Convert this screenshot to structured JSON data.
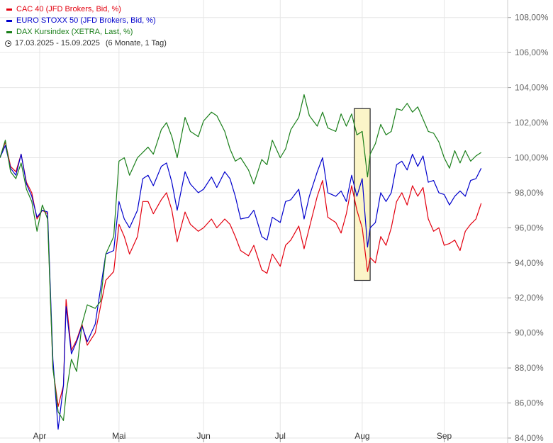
{
  "legend": {
    "series": [
      {
        "label": "CAC 40 (JFD Brokers, Bid, %)",
        "color": "#e3000f"
      },
      {
        "label": "EURO STOXX 50 (JFD Brokers, Bid, %)",
        "color": "#0000cc"
      },
      {
        "label": "DAX Kursindex (XETRA, Last, %)",
        "color": "#1a7f1a"
      }
    ],
    "date_range": "17.03.2025 - 15.09.2025",
    "period": "(6 Monate, 1 Tag)"
  },
  "chart_data": {
    "type": "line",
    "ylim": [
      84,
      109
    ],
    "y_ticks": [
      "84,00%",
      "86,00%",
      "88,00%",
      "90,00%",
      "92,00%",
      "94,00%",
      "96,00%",
      "98,00%",
      "100,00%",
      "102,00%",
      "104,00%",
      "106,00%",
      "108,00%"
    ],
    "y_tick_values": [
      84,
      86,
      88,
      90,
      92,
      94,
      96,
      98,
      100,
      102,
      104,
      106,
      108
    ],
    "x_ticks": [
      {
        "label": "Apr",
        "date": "2025-04-01"
      },
      {
        "label": "Mai",
        "date": "2025-05-01"
      },
      {
        "label": "Jun",
        "date": "2025-06-02"
      },
      {
        "label": "Jul",
        "date": "2025-07-01"
      },
      {
        "label": "Aug",
        "date": "2025-08-01"
      },
      {
        "label": "Sep",
        "date": "2025-09-01"
      }
    ],
    "x_range": [
      "2025-03-17",
      "2025-09-25"
    ],
    "grid": true,
    "highlight": {
      "x_start": "2025-07-29",
      "x_end": "2025-08-04",
      "y_range": [
        93.0,
        102.8
      ]
    },
    "series": [
      {
        "name": "CAC 40 (JFD Brokers, Bid, %)",
        "color": "#e3000f",
        "points": [
          [
            "2025-03-17",
            100.0
          ],
          [
            "2025-03-19",
            100.9
          ],
          [
            "2025-03-21",
            99.5
          ],
          [
            "2025-03-23",
            99.2
          ],
          [
            "2025-03-25",
            100.2
          ],
          [
            "2025-03-27",
            98.6
          ],
          [
            "2025-03-29",
            98.0
          ],
          [
            "2025-03-31",
            96.5
          ],
          [
            "2025-04-02",
            97.0
          ],
          [
            "2025-04-04",
            96.8
          ],
          [
            "2025-04-06",
            88.0
          ],
          [
            "2025-04-08",
            85.8
          ],
          [
            "2025-04-10",
            87.0
          ],
          [
            "2025-04-11",
            91.9
          ],
          [
            "2025-04-13",
            89.0
          ],
          [
            "2025-04-15",
            89.6
          ],
          [
            "2025-04-17",
            90.5
          ],
          [
            "2025-04-19",
            89.3
          ],
          [
            "2025-04-22",
            90.0
          ],
          [
            "2025-04-24",
            91.5
          ],
          [
            "2025-04-26",
            93.0
          ],
          [
            "2025-04-29",
            93.5
          ],
          [
            "2025-05-01",
            96.2
          ],
          [
            "2025-05-03",
            95.5
          ],
          [
            "2025-05-05",
            94.5
          ],
          [
            "2025-05-08",
            95.5
          ],
          [
            "2025-05-10",
            97.5
          ],
          [
            "2025-05-12",
            97.5
          ],
          [
            "2025-05-14",
            96.8
          ],
          [
            "2025-05-17",
            97.6
          ],
          [
            "2025-05-19",
            98.0
          ],
          [
            "2025-05-21",
            97.0
          ],
          [
            "2025-05-23",
            95.2
          ],
          [
            "2025-05-26",
            96.9
          ],
          [
            "2025-05-28",
            96.2
          ],
          [
            "2025-05-31",
            95.8
          ],
          [
            "2025-06-02",
            96.0
          ],
          [
            "2025-06-05",
            96.5
          ],
          [
            "2025-06-07",
            96.0
          ],
          [
            "2025-06-10",
            96.5
          ],
          [
            "2025-06-12",
            96.2
          ],
          [
            "2025-06-14",
            95.5
          ],
          [
            "2025-06-16",
            94.7
          ],
          [
            "2025-06-19",
            94.4
          ],
          [
            "2025-06-21",
            95.0
          ],
          [
            "2025-06-24",
            93.6
          ],
          [
            "2025-06-26",
            93.4
          ],
          [
            "2025-06-28",
            94.5
          ],
          [
            "2025-07-01",
            93.8
          ],
          [
            "2025-07-03",
            95.0
          ],
          [
            "2025-07-05",
            95.3
          ],
          [
            "2025-07-08",
            96.1
          ],
          [
            "2025-07-10",
            94.8
          ],
          [
            "2025-07-12",
            96.0
          ],
          [
            "2025-07-15",
            97.8
          ],
          [
            "2025-07-17",
            98.7
          ],
          [
            "2025-07-19",
            96.6
          ],
          [
            "2025-07-22",
            96.3
          ],
          [
            "2025-07-24",
            95.7
          ],
          [
            "2025-07-26",
            96.8
          ],
          [
            "2025-07-28",
            98.4
          ],
          [
            "2025-07-30",
            97.0
          ],
          [
            "2025-08-01",
            96.0
          ],
          [
            "2025-08-03",
            93.5
          ],
          [
            "2025-08-04",
            94.3
          ],
          [
            "2025-08-06",
            94.0
          ],
          [
            "2025-08-08",
            95.5
          ],
          [
            "2025-08-10",
            95.0
          ],
          [
            "2025-08-12",
            96.0
          ],
          [
            "2025-08-14",
            97.5
          ],
          [
            "2025-08-16",
            98.0
          ],
          [
            "2025-08-18",
            97.3
          ],
          [
            "2025-08-20",
            98.4
          ],
          [
            "2025-08-22",
            97.8
          ],
          [
            "2025-08-24",
            98.3
          ],
          [
            "2025-08-26",
            96.5
          ],
          [
            "2025-08-28",
            95.8
          ],
          [
            "2025-08-30",
            96.0
          ],
          [
            "2025-09-01",
            95.0
          ],
          [
            "2025-09-03",
            95.1
          ],
          [
            "2025-09-05",
            95.3
          ],
          [
            "2025-09-07",
            94.7
          ],
          [
            "2025-09-09",
            95.8
          ],
          [
            "2025-09-11",
            96.2
          ],
          [
            "2025-09-13",
            96.5
          ],
          [
            "2025-09-15",
            97.4
          ]
        ]
      },
      {
        "name": "EURO STOXX 50 (JFD Brokers, Bid, %)",
        "color": "#0000cc",
        "points": [
          [
            "2025-03-17",
            100.0
          ],
          [
            "2025-03-19",
            100.7
          ],
          [
            "2025-03-21",
            99.4
          ],
          [
            "2025-03-23",
            99.0
          ],
          [
            "2025-03-25",
            100.2
          ],
          [
            "2025-03-27",
            98.5
          ],
          [
            "2025-03-29",
            97.8
          ],
          [
            "2025-03-31",
            96.6
          ],
          [
            "2025-04-02",
            97.0
          ],
          [
            "2025-04-04",
            96.9
          ],
          [
            "2025-04-06",
            88.5
          ],
          [
            "2025-04-08",
            84.5
          ],
          [
            "2025-04-10",
            87.0
          ],
          [
            "2025-04-11",
            91.5
          ],
          [
            "2025-04-13",
            88.8
          ],
          [
            "2025-04-15",
            89.5
          ],
          [
            "2025-04-17",
            90.4
          ],
          [
            "2025-04-19",
            89.5
          ],
          [
            "2025-04-22",
            90.5
          ],
          [
            "2025-04-24",
            92.5
          ],
          [
            "2025-04-26",
            94.5
          ],
          [
            "2025-04-29",
            94.7
          ],
          [
            "2025-05-01",
            97.5
          ],
          [
            "2025-05-03",
            96.5
          ],
          [
            "2025-05-05",
            96.0
          ],
          [
            "2025-05-08",
            97.0
          ],
          [
            "2025-05-10",
            98.8
          ],
          [
            "2025-05-12",
            99.0
          ],
          [
            "2025-05-14",
            98.4
          ],
          [
            "2025-05-17",
            99.5
          ],
          [
            "2025-05-19",
            99.7
          ],
          [
            "2025-05-21",
            98.6
          ],
          [
            "2025-05-23",
            97.0
          ],
          [
            "2025-05-26",
            99.2
          ],
          [
            "2025-05-28",
            98.5
          ],
          [
            "2025-05-31",
            98.0
          ],
          [
            "2025-06-02",
            98.2
          ],
          [
            "2025-06-05",
            98.9
          ],
          [
            "2025-06-07",
            98.3
          ],
          [
            "2025-06-10",
            99.2
          ],
          [
            "2025-06-12",
            98.8
          ],
          [
            "2025-06-14",
            97.8
          ],
          [
            "2025-06-16",
            96.5
          ],
          [
            "2025-06-19",
            96.6
          ],
          [
            "2025-06-21",
            97.0
          ],
          [
            "2025-06-24",
            95.5
          ],
          [
            "2025-06-26",
            95.3
          ],
          [
            "2025-06-28",
            96.6
          ],
          [
            "2025-07-01",
            96.3
          ],
          [
            "2025-07-03",
            97.5
          ],
          [
            "2025-07-05",
            97.6
          ],
          [
            "2025-07-08",
            98.2
          ],
          [
            "2025-07-10",
            96.5
          ],
          [
            "2025-07-12",
            97.8
          ],
          [
            "2025-07-15",
            99.2
          ],
          [
            "2025-07-17",
            100.0
          ],
          [
            "2025-07-19",
            98.0
          ],
          [
            "2025-07-22",
            97.8
          ],
          [
            "2025-07-24",
            98.1
          ],
          [
            "2025-07-26",
            97.5
          ],
          [
            "2025-07-28",
            99.0
          ],
          [
            "2025-07-30",
            97.8
          ],
          [
            "2025-08-01",
            98.8
          ],
          [
            "2025-08-03",
            94.9
          ],
          [
            "2025-08-04",
            96.0
          ],
          [
            "2025-08-06",
            96.3
          ],
          [
            "2025-08-08",
            98.0
          ],
          [
            "2025-08-10",
            97.5
          ],
          [
            "2025-08-12",
            98.0
          ],
          [
            "2025-08-14",
            99.6
          ],
          [
            "2025-08-16",
            99.8
          ],
          [
            "2025-08-18",
            99.3
          ],
          [
            "2025-08-20",
            100.2
          ],
          [
            "2025-08-22",
            99.5
          ],
          [
            "2025-08-24",
            100.1
          ],
          [
            "2025-08-26",
            98.6
          ],
          [
            "2025-08-28",
            98.7
          ],
          [
            "2025-08-30",
            98.0
          ],
          [
            "2025-09-01",
            97.9
          ],
          [
            "2025-09-03",
            97.3
          ],
          [
            "2025-09-05",
            97.8
          ],
          [
            "2025-09-07",
            98.1
          ],
          [
            "2025-09-09",
            97.8
          ],
          [
            "2025-09-11",
            98.7
          ],
          [
            "2025-09-13",
            98.8
          ],
          [
            "2025-09-15",
            99.4
          ]
        ]
      },
      {
        "name": "DAX Kursindex (XETRA, Last, %)",
        "color": "#1a7f1a",
        "points": [
          [
            "2025-03-17",
            100.0
          ],
          [
            "2025-03-19",
            101.0
          ],
          [
            "2025-03-21",
            99.2
          ],
          [
            "2025-03-23",
            98.8
          ],
          [
            "2025-03-25",
            99.7
          ],
          [
            "2025-03-27",
            98.2
          ],
          [
            "2025-03-29",
            97.5
          ],
          [
            "2025-03-31",
            95.8
          ],
          [
            "2025-04-02",
            97.3
          ],
          [
            "2025-04-04",
            96.5
          ],
          [
            "2025-04-06",
            88.0
          ],
          [
            "2025-04-08",
            85.5
          ],
          [
            "2025-04-10",
            85.0
          ],
          [
            "2025-04-11",
            86.5
          ],
          [
            "2025-04-13",
            88.5
          ],
          [
            "2025-04-15",
            87.8
          ],
          [
            "2025-04-17",
            90.5
          ],
          [
            "2025-04-19",
            91.6
          ],
          [
            "2025-04-22",
            91.4
          ],
          [
            "2025-04-24",
            91.8
          ],
          [
            "2025-04-26",
            94.5
          ],
          [
            "2025-04-29",
            95.5
          ],
          [
            "2025-05-01",
            99.8
          ],
          [
            "2025-05-03",
            100.0
          ],
          [
            "2025-05-05",
            99.0
          ],
          [
            "2025-05-08",
            100.0
          ],
          [
            "2025-05-10",
            100.3
          ],
          [
            "2025-05-12",
            100.6
          ],
          [
            "2025-05-14",
            100.2
          ],
          [
            "2025-05-17",
            101.6
          ],
          [
            "2025-05-19",
            102.0
          ],
          [
            "2025-05-21",
            101.2
          ],
          [
            "2025-05-23",
            100.0
          ],
          [
            "2025-05-26",
            102.3
          ],
          [
            "2025-05-28",
            101.5
          ],
          [
            "2025-05-31",
            101.2
          ],
          [
            "2025-06-02",
            102.1
          ],
          [
            "2025-06-05",
            102.6
          ],
          [
            "2025-06-07",
            102.4
          ],
          [
            "2025-06-10",
            101.5
          ],
          [
            "2025-06-12",
            100.5
          ],
          [
            "2025-06-14",
            99.8
          ],
          [
            "2025-06-16",
            100.0
          ],
          [
            "2025-06-19",
            99.3
          ],
          [
            "2025-06-21",
            98.5
          ],
          [
            "2025-06-24",
            99.9
          ],
          [
            "2025-06-26",
            99.6
          ],
          [
            "2025-06-28",
            101.0
          ],
          [
            "2025-07-01",
            100.0
          ],
          [
            "2025-07-03",
            100.5
          ],
          [
            "2025-07-05",
            101.6
          ],
          [
            "2025-07-08",
            102.3
          ],
          [
            "2025-07-10",
            103.6
          ],
          [
            "2025-07-12",
            102.4
          ],
          [
            "2025-07-15",
            101.8
          ],
          [
            "2025-07-17",
            102.6
          ],
          [
            "2025-07-19",
            101.7
          ],
          [
            "2025-07-22",
            101.5
          ],
          [
            "2025-07-24",
            102.5
          ],
          [
            "2025-07-26",
            101.8
          ],
          [
            "2025-07-28",
            102.5
          ],
          [
            "2025-07-30",
            101.3
          ],
          [
            "2025-08-01",
            101.5
          ],
          [
            "2025-08-03",
            98.9
          ],
          [
            "2025-08-04",
            100.2
          ],
          [
            "2025-08-06",
            100.8
          ],
          [
            "2025-08-08",
            101.9
          ],
          [
            "2025-08-10",
            101.3
          ],
          [
            "2025-08-12",
            101.5
          ],
          [
            "2025-08-14",
            102.8
          ],
          [
            "2025-08-16",
            102.7
          ],
          [
            "2025-08-18",
            103.1
          ],
          [
            "2025-08-20",
            102.6
          ],
          [
            "2025-08-22",
            102.9
          ],
          [
            "2025-08-24",
            102.2
          ],
          [
            "2025-08-26",
            101.5
          ],
          [
            "2025-08-28",
            101.4
          ],
          [
            "2025-08-30",
            100.9
          ],
          [
            "2025-09-01",
            100.0
          ],
          [
            "2025-09-03",
            99.4
          ],
          [
            "2025-09-05",
            100.4
          ],
          [
            "2025-09-07",
            99.7
          ],
          [
            "2025-09-09",
            100.4
          ],
          [
            "2025-09-11",
            99.8
          ],
          [
            "2025-09-13",
            100.1
          ],
          [
            "2025-09-15",
            100.3
          ]
        ]
      }
    ]
  }
}
